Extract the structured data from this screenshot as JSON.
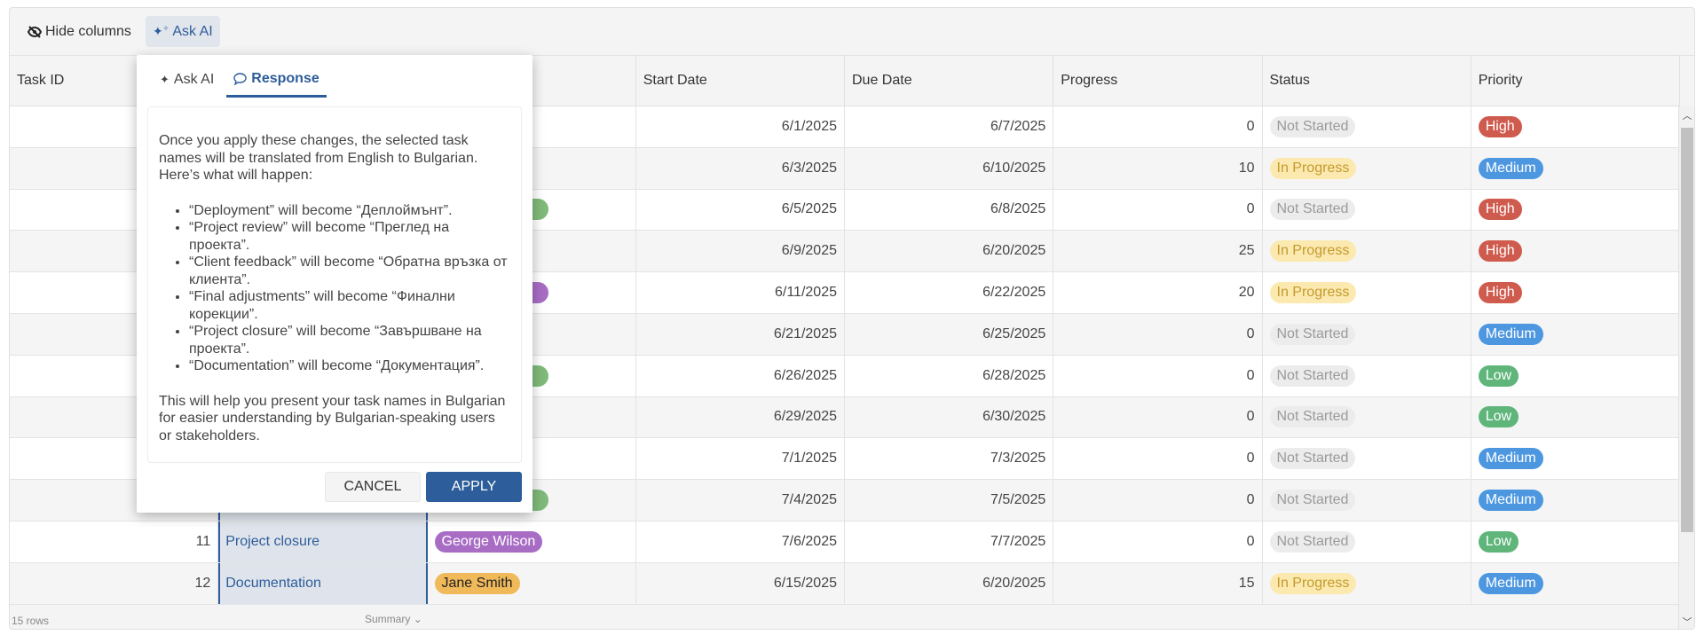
{
  "toolbar": {
    "hide_columns": "Hide columns",
    "ask_ai": "Ask AI"
  },
  "columns": [
    "Task ID",
    "",
    "",
    "Start Date",
    "Due Date",
    "Progress",
    "Status",
    "Priority"
  ],
  "rows": [
    {
      "start": "6/1/2025",
      "due": "6/7/2025",
      "progress": "0",
      "status": "Not Started",
      "priority": "High"
    },
    {
      "start": "6/3/2025",
      "due": "6/10/2025",
      "progress": "10",
      "status": "In Progress",
      "priority": "Medium"
    },
    {
      "start": "6/5/2025",
      "due": "6/8/2025",
      "progress": "0",
      "status": "Not Started",
      "priority": "High",
      "assignee_color": "#7fba7a"
    },
    {
      "start": "6/9/2025",
      "due": "6/20/2025",
      "progress": "25",
      "status": "In Progress",
      "priority": "High"
    },
    {
      "start": "6/11/2025",
      "due": "6/22/2025",
      "progress": "20",
      "status": "In Progress",
      "priority": "High",
      "assignee_color": "#a86cc4"
    },
    {
      "start": "6/21/2025",
      "due": "6/25/2025",
      "progress": "0",
      "status": "Not Started",
      "priority": "Medium"
    },
    {
      "start": "6/26/2025",
      "due": "6/28/2025",
      "progress": "0",
      "status": "Not Started",
      "priority": "Low",
      "assignee_color": "#7fba7a"
    },
    {
      "start": "6/29/2025",
      "due": "6/30/2025",
      "progress": "0",
      "status": "Not Started",
      "priority": "Low"
    },
    {
      "start": "7/1/2025",
      "due": "7/3/2025",
      "progress": "0",
      "status": "Not Started",
      "priority": "Medium"
    },
    {
      "start": "7/4/2025",
      "due": "7/5/2025",
      "progress": "0",
      "status": "Not Started",
      "priority": "Medium",
      "assignee_color": "#7fba7a"
    },
    {
      "id": "11",
      "name": "Project closure",
      "assignee": "George Wilson",
      "assignee_color": "#a86cc4",
      "assignee_text": "#fff",
      "start": "7/6/2025",
      "due": "7/7/2025",
      "progress": "0",
      "status": "Not Started",
      "priority": "Low"
    },
    {
      "id": "12",
      "name": "Documentation",
      "assignee": "Jane Smith",
      "assignee_color": "#f0b95a",
      "assignee_text": "#222",
      "start": "6/15/2025",
      "due": "6/20/2025",
      "progress": "15",
      "status": "In Progress",
      "priority": "Medium"
    }
  ],
  "footer": {
    "row_count": "15 rows",
    "summary": "Summary"
  },
  "popup": {
    "tabs": [
      "Ask AI",
      "Response"
    ],
    "active_tab": "Response",
    "intro": "Once you apply these changes, the selected task names will be translated from English to Bulgarian. Here’s what will happen:",
    "items": [
      "“Deployment” will become “Деплоймънт”.",
      "“Project review” will become “Преглед на проекта”.",
      "“Client feedback” will become “Обратна връзка от клиента”.",
      "“Final adjustments” will become “Финални корекции”.",
      "“Project closure” will become “Завършване на проекта”.",
      "“Documentation” will become “Документация”."
    ],
    "outro": "This will help you present your task names in Bulgarian for easier understanding by Bulgarian-speaking users or stakeholders.",
    "cancel": "CANCEL",
    "apply": "APPLY"
  },
  "colors": {
    "accent": "#2d5d9a",
    "high": "#cf5b4e",
    "medium": "#4d97e0",
    "low": "#5fb57a"
  }
}
